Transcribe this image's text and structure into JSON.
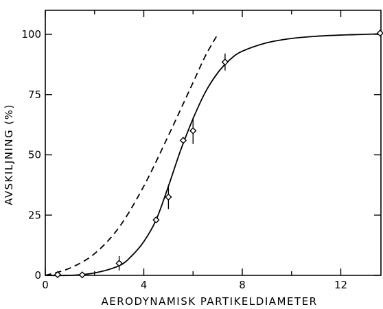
{
  "chart_data": {
    "type": "line",
    "title": "",
    "xlabel": "AERODYNAMISK PARTIKELDIAMETER",
    "ylabel": "AVSKILJNING (%)",
    "xlim": [
      0,
      14
    ],
    "ylim": [
      0,
      110
    ],
    "x_ticks": [
      0,
      4,
      8,
      12
    ],
    "x_tick_labels": [
      "0",
      "4",
      "8",
      "12"
    ],
    "y_ticks": [
      0,
      25,
      50,
      75,
      100
    ],
    "y_tick_labels": [
      "0",
      "25",
      "50",
      "75",
      "100"
    ],
    "grid": false,
    "legend": "none",
    "series": [
      {
        "style": "markers-with-error-bars",
        "marker": "diamond",
        "points": [
          {
            "x": 0.5,
            "y": 0.3,
            "err": 0
          },
          {
            "x": 1.5,
            "y": 0.2,
            "err": 0
          },
          {
            "x": 3.0,
            "y": 5.0,
            "err": 3.0
          },
          {
            "x": 4.5,
            "y": 23.0,
            "err": 0
          },
          {
            "x": 5.0,
            "y": 32.5,
            "err": 5.0
          },
          {
            "x": 5.6,
            "y": 56.0,
            "err": 0
          },
          {
            "x": 6.0,
            "y": 60.0,
            "err": 5.5
          },
          {
            "x": 7.3,
            "y": 88.5,
            "err": 3.5
          },
          {
            "x": 13.6,
            "y": 100.5,
            "err": 0
          }
        ]
      },
      {
        "style": "solid-curve",
        "x": [
          0,
          1,
          2,
          3,
          3.5,
          4,
          4.5,
          5,
          5.5,
          6,
          6.5,
          7,
          7.5,
          8,
          9,
          10,
          11,
          12,
          13,
          13.6
        ],
        "y": [
          0,
          0,
          1,
          4,
          8,
          14,
          23,
          37,
          52,
          65,
          76,
          84,
          89.5,
          93,
          96.5,
          98.3,
          99.2,
          99.7,
          100,
          100.2
        ]
      },
      {
        "style": "dashed-curve",
        "x": [
          0,
          1,
          2,
          3,
          4,
          5,
          6,
          6.5,
          7
        ],
        "y": [
          0,
          3,
          9,
          20,
          37,
          58,
          80,
          91,
          100
        ]
      }
    ]
  }
}
